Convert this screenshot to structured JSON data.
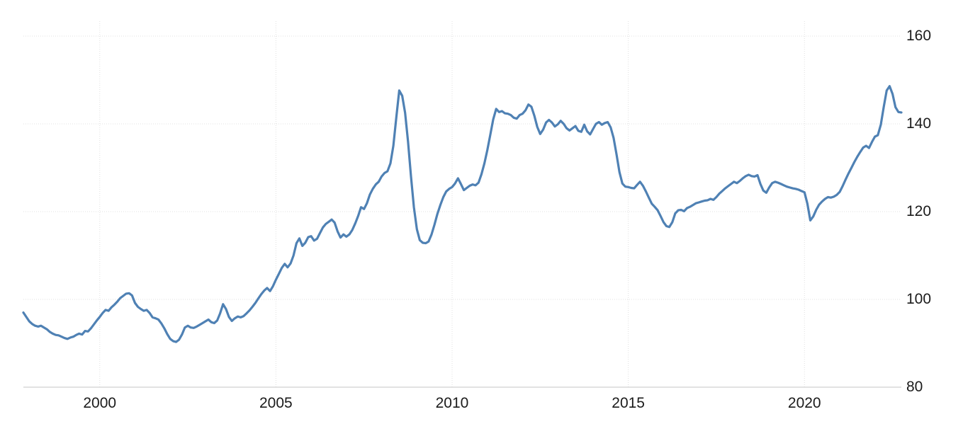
{
  "chart_data": {
    "type": "line",
    "title": "",
    "legend": "none",
    "grid": true,
    "background": "#ffffff",
    "grid_color": "#e0e0e0",
    "axis_color": "#c6c6c6",
    "tick_label_color": "#1b1b1b",
    "line_color": "#4f81b4",
    "x_domain_years": [
      1997.8333,
      2022.75
    ],
    "y_domain": [
      80,
      160
    ],
    "x_ticks": [
      {
        "label": "2000",
        "year": 2000
      },
      {
        "label": "2005",
        "year": 2005
      },
      {
        "label": "2010",
        "year": 2010
      },
      {
        "label": "2015",
        "year": 2015
      },
      {
        "label": "2020",
        "year": 2020
      }
    ],
    "y_ticks": [
      {
        "label": "160",
        "value": 160
      },
      {
        "label": "140",
        "value": 140
      },
      {
        "label": "120",
        "value": 120
      },
      {
        "label": "100",
        "value": 100
      },
      {
        "label": "80",
        "value": 80
      }
    ],
    "series": [
      {
        "start_year": 1997,
        "start_month": 11,
        "frequency": "monthly",
        "values": [
          97.0,
          96.0,
          95.0,
          94.4,
          94.0,
          93.8,
          94.0,
          93.6,
          93.2,
          92.6,
          92.2,
          91.9,
          91.8,
          91.5,
          91.2,
          91.0,
          91.3,
          91.5,
          91.9,
          92.2,
          92.0,
          92.8,
          92.7,
          93.4,
          94.3,
          95.2,
          96.0,
          96.9,
          97.6,
          97.4,
          98.2,
          98.8,
          99.5,
          100.3,
          100.8,
          101.3,
          101.4,
          100.9,
          99.2,
          98.3,
          97.8,
          97.4,
          97.6,
          96.9,
          95.9,
          95.7,
          95.4,
          94.5,
          93.4,
          92.1,
          91.0,
          90.5,
          90.3,
          90.8,
          92.0,
          93.6,
          94.0,
          93.6,
          93.5,
          93.8,
          94.2,
          94.6,
          95.0,
          95.4,
          94.8,
          94.6,
          95.2,
          96.8,
          98.9,
          97.8,
          96.0,
          95.1,
          95.7,
          96.1,
          95.9,
          96.2,
          96.8,
          97.5,
          98.3,
          99.2,
          100.2,
          101.2,
          102.0,
          102.6,
          101.9,
          103.0,
          104.5,
          105.8,
          107.2,
          108.1,
          107.3,
          108.2,
          110.0,
          112.8,
          113.9,
          112.2,
          112.9,
          114.2,
          114.4,
          113.4,
          113.8,
          115.1,
          116.4,
          117.2,
          117.7,
          118.2,
          117.5,
          115.5,
          114.1,
          114.8,
          114.3,
          114.8,
          115.8,
          117.3,
          119.0,
          121.0,
          120.6,
          121.9,
          123.9,
          125.2,
          126.2,
          126.8,
          128.0,
          128.8,
          129.2,
          131.0,
          135.0,
          141.5,
          147.6,
          146.4,
          142.5,
          136.0,
          128.0,
          121.0,
          116.0,
          113.5,
          112.9,
          112.8,
          113.2,
          114.8,
          117.0,
          119.5,
          121.5,
          123.3,
          124.6,
          125.2,
          125.6,
          126.4,
          127.6,
          126.3,
          124.9,
          125.4,
          125.9,
          126.2,
          126.0,
          126.6,
          128.5,
          131.0,
          134.0,
          137.5,
          141.0,
          143.4,
          142.7,
          142.9,
          142.4,
          142.3,
          142.0,
          141.4,
          141.2,
          142.0,
          142.3,
          143.1,
          144.4,
          143.9,
          141.9,
          139.3,
          137.7,
          138.7,
          140.3,
          140.9,
          140.3,
          139.4,
          139.9,
          140.7,
          140.0,
          139.0,
          138.5,
          139.0,
          139.5,
          138.4,
          138.2,
          139.8,
          138.3,
          137.6,
          138.8,
          140.0,
          140.4,
          139.8,
          140.2,
          140.4,
          139.2,
          136.8,
          133.0,
          129.0,
          126.4,
          125.7,
          125.6,
          125.4,
          125.3,
          126.1,
          126.8,
          125.9,
          124.6,
          123.2,
          121.8,
          121.1,
          120.3,
          119.0,
          117.6,
          116.7,
          116.5,
          117.6,
          119.6,
          120.3,
          120.4,
          120.1,
          120.8,
          121.1,
          121.5,
          121.9,
          122.1,
          122.3,
          122.5,
          122.6,
          122.9,
          122.7,
          123.3,
          124.1,
          124.7,
          125.3,
          125.8,
          126.3,
          126.8,
          126.5,
          127.0,
          127.6,
          128.1,
          128.4,
          128.1,
          128.0,
          128.3,
          126.3,
          124.8,
          124.3,
          125.5,
          126.5,
          126.8,
          126.6,
          126.3,
          126.0,
          125.7,
          125.5,
          125.3,
          125.2,
          125.0,
          124.7,
          124.4,
          121.8,
          118.0,
          118.9,
          120.4,
          121.6,
          122.3,
          122.9,
          123.3,
          123.2,
          123.4,
          123.8,
          124.5,
          125.8,
          127.3,
          128.7,
          130.0,
          131.3,
          132.5,
          133.6,
          134.6,
          135.0,
          134.5,
          135.9,
          137.1,
          137.4,
          139.8,
          143.8,
          147.6,
          148.6,
          146.8,
          143.8,
          142.7,
          142.6
        ]
      }
    ]
  }
}
